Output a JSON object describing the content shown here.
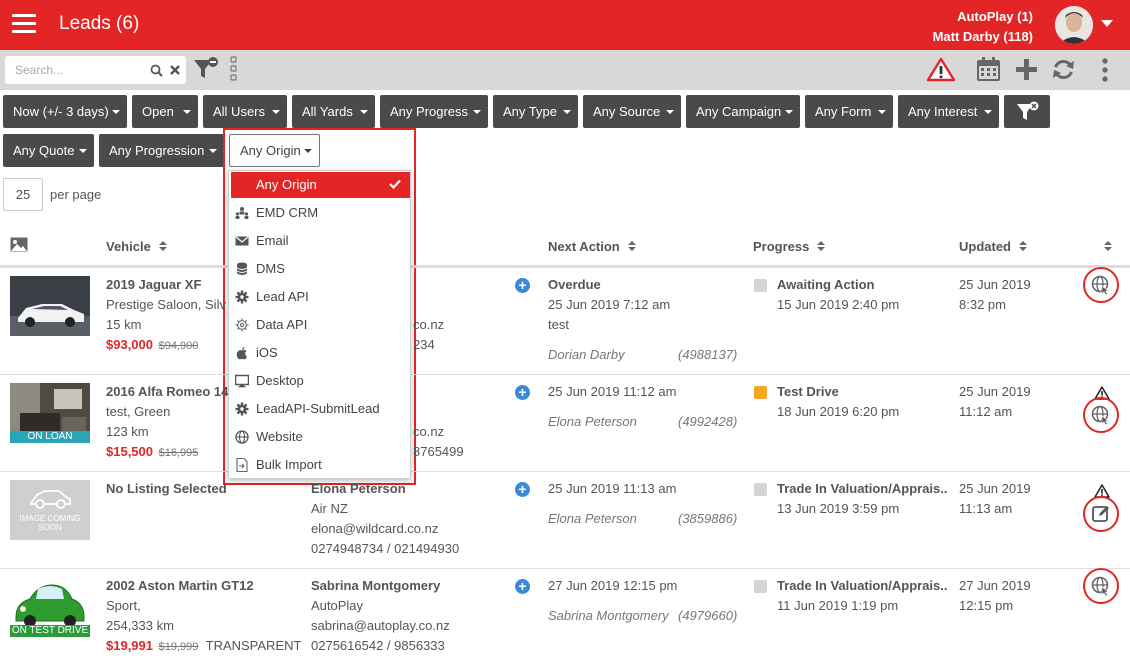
{
  "header": {
    "title": "Leads (6)",
    "account_line1": "AutoPlay (1)",
    "account_line2": "Matt Darby (118)"
  },
  "toolbar": {
    "search_placeholder": "Search..."
  },
  "filters": {
    "buttons": [
      "Now (+/- 3 days)",
      "Open",
      "All Users",
      "All Yards",
      "Any Progress",
      "Any Type",
      "Any Source",
      "Any Campaign",
      "Any Form",
      "Any Interest",
      "Any Quote",
      "Any Progression",
      "Any Origin"
    ]
  },
  "origin_dropdown": {
    "items": [
      "Any Origin",
      "EMD CRM",
      "Email",
      "DMS",
      "Lead API",
      "Data API",
      "iOS",
      "Desktop",
      "LeadAPI-SubmitLead",
      "Website",
      "Bulk Import"
    ],
    "selected": "Any Origin"
  },
  "pagination": {
    "per_page_value": "25",
    "per_page_label": "per page"
  },
  "table": {
    "headers": {
      "vehicle": "Vehicle",
      "next_action": "Next Action",
      "progress": "Progress",
      "updated": "Updated"
    },
    "rows": [
      {
        "vehicle_title": "2019 Jaguar XF",
        "vehicle_line2": "Prestige Saloon, Silve",
        "vehicle_line3": "15 km",
        "price": "$93,000",
        "old_price": "$94,900",
        "contact_line2": "co.nz",
        "contact_line3": "234",
        "next_action_title": "Overdue",
        "next_action_date": "25 Jun 2019 7:12 am",
        "next_action_note": "test",
        "assignee": "Dorian Darby",
        "lead_id": "(4988137)",
        "progress_title": "Awaiting Action",
        "progress_date": "15 Jun 2019 2:40 pm",
        "progress_color": "#d4d4d4",
        "updated_date": "25 Jun 2019",
        "updated_time": "8:32 pm"
      },
      {
        "vehicle_title": "2016 Alfa Romeo 14",
        "vehicle_line2": "test, Green",
        "vehicle_line3": "123 km",
        "price": "$15,500",
        "old_price": "$16,995",
        "badge": "ON LOAN",
        "contact_line2": "co.nz",
        "contact_line3": "8765499",
        "next_action_date": "25 Jun 2019 11:12 am",
        "assignee": "Elona Peterson",
        "lead_id": "(4992428)",
        "progress_title": "Test Drive",
        "progress_date": "18 Jun 2019 6:20 pm",
        "progress_color": "#f5a623",
        "updated_date": "25 Jun 2019",
        "updated_time": "11:12 am"
      },
      {
        "vehicle_title": "No Listing Selected",
        "thumb_text_1": "IMAGE COMING",
        "thumb_text_2": "SOON",
        "contact_name": "Elona Peterson",
        "contact_company": "Air NZ",
        "contact_email": "elona@wildcard.co.nz",
        "contact_phone": "0274948734 / 021494930",
        "next_action_date": "25 Jun 2019 11:13 am",
        "assignee": "Elona Peterson",
        "lead_id": "(3859886)",
        "progress_title": "Trade In Valuation/Apprais...",
        "progress_date": "13 Jun 2019 3:59 pm",
        "progress_color": "#d4d4d4",
        "updated_date": "25 Jun 2019",
        "updated_time": "11:13 am"
      },
      {
        "vehicle_title": "2002 Aston Martin GT12",
        "vehicle_line2": "Sport,",
        "vehicle_line3": "254,333 km",
        "price": "$19,991",
        "old_price": "$19,999",
        "price_tag": "TRANSPARENT",
        "badge": "ON TEST DRIVE",
        "contact_name": "Sabrina Montgomery",
        "contact_company": "AutoPlay",
        "contact_email": "sabrina@autoplay.co.nz",
        "contact_phone": "0275616542 / 9856333",
        "next_action_date": "27 Jun 2019 12:15 pm",
        "assignee": "Sabrina Montgomery",
        "lead_id": "(4979660)",
        "progress_title": "Trade In Valuation/Apprais...",
        "progress_date": "11 Jun 2019 1:19 pm",
        "progress_color": "#d4d4d4",
        "updated_date": "27 Jun 2019",
        "updated_time": "12:15 pm"
      }
    ]
  },
  "colors": {
    "brand_red": "#e32526",
    "filter_dark": "#4a4a4a",
    "toolbar_gray": "#d8d8d8",
    "badge_teal": "#2aa5b8",
    "badge_green": "#2a9d3a",
    "link_blue": "#3b8ad6"
  },
  "icons": {
    "menu": "hamburger-icon",
    "search": "search-icon",
    "clear": "close-icon",
    "filter": "filter-icon",
    "warning": "warning-icon",
    "calendar": "calendar-icon",
    "add": "plus-icon",
    "refresh": "refresh-icon",
    "more": "more-vertical-icon",
    "origin_website": "globe-icon",
    "origin_form": "edit-form-icon"
  }
}
